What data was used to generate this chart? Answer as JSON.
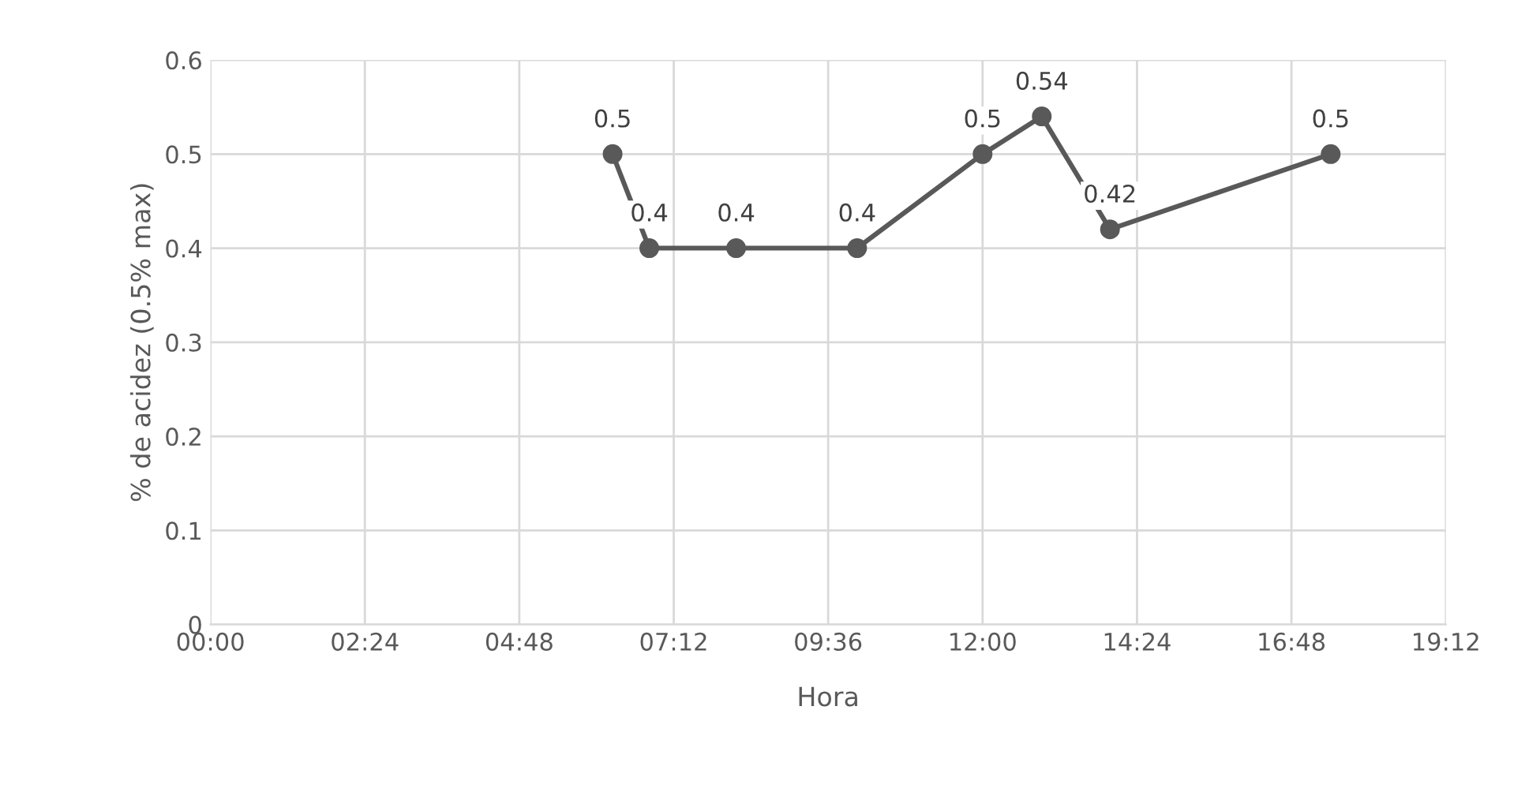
{
  "chart_data": {
    "type": "line",
    "xlabel": "Hora",
    "ylabel": "% de acidez (0.5% max)",
    "x": [
      6.25,
      6.82,
      8.17,
      10.05,
      12.0,
      12.92,
      13.98,
      17.41
    ],
    "series": [
      {
        "color": "#595959",
        "values": [
          0.5,
          0.4,
          0.4,
          0.4,
          0.5,
          0.54,
          0.42,
          0.5
        ]
      }
    ],
    "xlim": [
      0,
      19.2
    ],
    "xticks": [
      {
        "value": 0,
        "label": "00:00"
      },
      {
        "value": 2.4,
        "label": "02:24"
      },
      {
        "value": 4.8,
        "label": "04:48"
      },
      {
        "value": 7.2,
        "label": "07:12"
      },
      {
        "value": 9.6,
        "label": "09:36"
      },
      {
        "value": 12.0,
        "label": "12:00"
      },
      {
        "value": 14.4,
        "label": "14:24"
      },
      {
        "value": 16.8,
        "label": "16:48"
      },
      {
        "value": 19.2,
        "label": "19:12"
      }
    ],
    "ylim": [
      0,
      0.6
    ],
    "yticks": [
      0,
      0.1,
      0.2,
      0.3,
      0.4,
      0.5,
      0.6
    ],
    "grid": true,
    "marker": "circle",
    "line_style": "solid",
    "data_labels": true,
    "legend": false
  }
}
